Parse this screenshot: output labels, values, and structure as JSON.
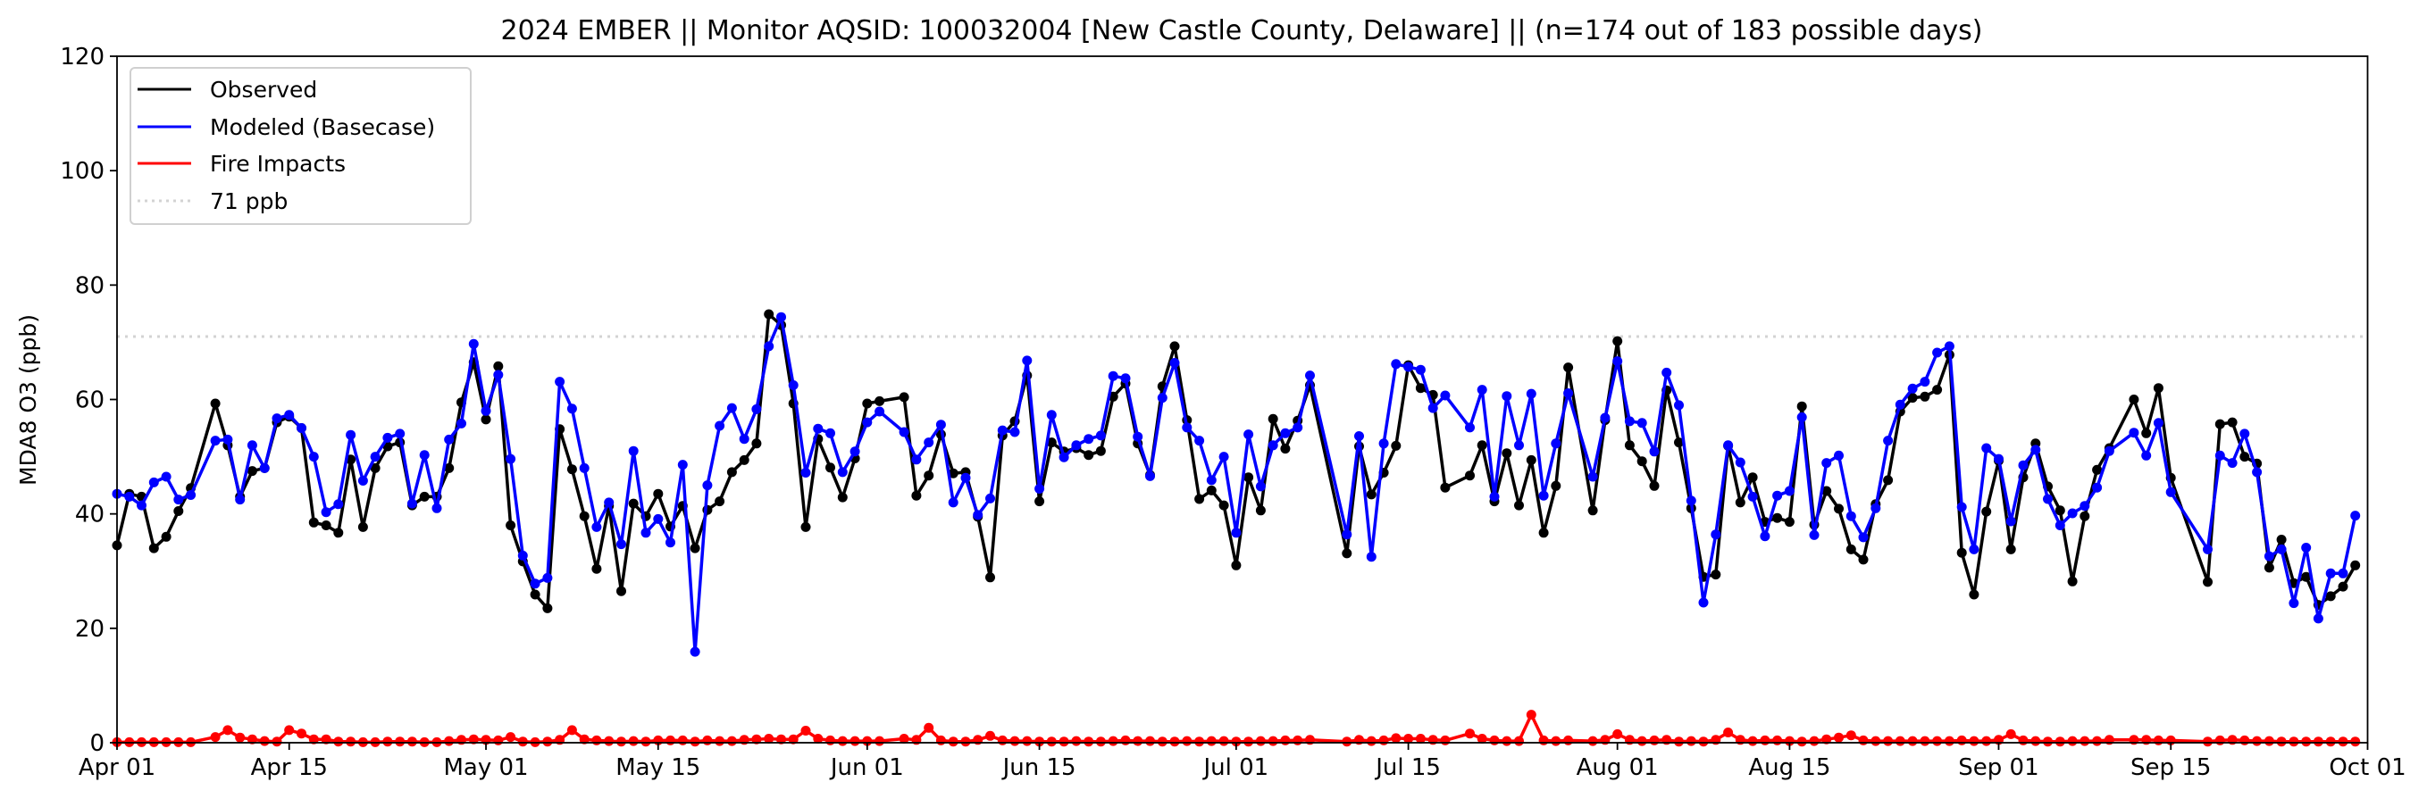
{
  "chart_data": {
    "type": "line",
    "title": "2024 EMBER || Monitor AQSID: 100032004 [New Castle County, Delaware] || (n=174 out of 183 possible days)",
    "xlabel": "",
    "ylabel": "MDA8 O3 (ppb)",
    "ylim": [
      0,
      120
    ],
    "yticks": [
      "0",
      "20",
      "40",
      "60",
      "80",
      "100",
      "120"
    ],
    "x_start": "2024-04-01",
    "x_days": 183,
    "xticks": [
      {
        "label": "Apr 01",
        "day": 0
      },
      {
        "label": "Apr 15",
        "day": 14
      },
      {
        "label": "May 01",
        "day": 30
      },
      {
        "label": "May 15",
        "day": 44
      },
      {
        "label": "Jun 01",
        "day": 61
      },
      {
        "label": "Jun 15",
        "day": 75
      },
      {
        "label": "Jul 01",
        "day": 91
      },
      {
        "label": "Jul 15",
        "day": 105
      },
      {
        "label": "Aug 01",
        "day": 122
      },
      {
        "label": "Aug 15",
        "day": 136
      },
      {
        "label": "Sep 01",
        "day": 153
      },
      {
        "label": "Sep 15",
        "day": 167
      },
      {
        "label": "Oct 01",
        "day": 183
      }
    ],
    "grid": false,
    "legend_position": "top-left",
    "reference_line": {
      "label": "71 ppb",
      "value": 71,
      "color": "#d3d3d3"
    },
    "series": [
      {
        "name": "Observed",
        "color": "#000000",
        "values": [
          34.5,
          43.5,
          43,
          34,
          36,
          40.5,
          44.5,
          null,
          59.3,
          52,
          43,
          47.5,
          48,
          56,
          57,
          55,
          38.5,
          38,
          36.7,
          49.5,
          37.7,
          48,
          51.8,
          52.5,
          41.5,
          43,
          43,
          48,
          59.5,
          66.5,
          56.5,
          65.8,
          38,
          31.7,
          25.9,
          23.5,
          54.8,
          47.8,
          39.6,
          30.4,
          41.4,
          26.5,
          41.8,
          39.6,
          43.5,
          37.8,
          41.4,
          34,
          40.7,
          42.2,
          47.3,
          49.4,
          52.3,
          74.9,
          73,
          59.3,
          37.7,
          53.1,
          48.1,
          42.9,
          49.7,
          59.3,
          59.7,
          null,
          60.4,
          43.2,
          46.7,
          53.9,
          47.1,
          47.3,
          39.5,
          28.9,
          53.7,
          56.2,
          64.2,
          42.2,
          52.5,
          50.9,
          51.5,
          50.3,
          51,
          60.5,
          62.8,
          52.3,
          46.8,
          62.3,
          69.3,
          56.4,
          42.6,
          44.1,
          41.5,
          31,
          46.4,
          40.6,
          56.6,
          51.4,
          56.3,
          62.5,
          null,
          null,
          33.1,
          51.8,
          43.4,
          47.2,
          51.9,
          66,
          62,
          60.8,
          44.6,
          null,
          46.7,
          52,
          42.2,
          50.6,
          41.5,
          49.4,
          36.7,
          44.9,
          65.6,
          null,
          40.6,
          56.4,
          70.2,
          52,
          49.2,
          44.9,
          61.6,
          52.5,
          41,
          29,
          29.4,
          51.9,
          42,
          46.4,
          38.6,
          39.3,
          38.6,
          58.8,
          38.1,
          44,
          40.9,
          33.8,
          32,
          41.7,
          45.9,
          57.9,
          60.3,
          60.5,
          61.7,
          67.8,
          33.2,
          25.9,
          40.4,
          49.3,
          33.8,
          46.4,
          52.3,
          44.8,
          40.6,
          28.2,
          39.6,
          47.7,
          51.5,
          null,
          60,
          54.1,
          62,
          46.3,
          null,
          null,
          28.1,
          55.7,
          56,
          50,
          48.8,
          30.6,
          35.5,
          27.9,
          29,
          24.1,
          25.6,
          27.3,
          31
        ]
      },
      {
        "name": "Modeled (Basecase)",
        "color": "#0000ff",
        "values": [
          43.5,
          43,
          41.5,
          45.5,
          46.5,
          42.5,
          43.3,
          null,
          52.8,
          53,
          42.5,
          52,
          48,
          56.7,
          57.3,
          55,
          50,
          40.3,
          41.7,
          53.8,
          45.8,
          50,
          53.3,
          54,
          41.8,
          50.3,
          41,
          53,
          55.8,
          69.7,
          58,
          64.3,
          49.6,
          32.7,
          27.8,
          28.8,
          63.1,
          58.4,
          48,
          37.7,
          42,
          34.7,
          51,
          36.7,
          39.1,
          35,
          48.6,
          15.9,
          45,
          55.4,
          58.5,
          53.1,
          58.3,
          69.3,
          74.4,
          62.5,
          47.2,
          54.9,
          54.1,
          47.3,
          50.9,
          56,
          57.9,
          null,
          54.3,
          49.5,
          52.5,
          55.6,
          42,
          46.3,
          39.8,
          42.7,
          54.6,
          54.3,
          66.8,
          44.4,
          57.3,
          49.9,
          52,
          53.1,
          53.7,
          64.1,
          63.7,
          53.5,
          46.6,
          60.3,
          66.4,
          55.1,
          52.8,
          45.9,
          50,
          36.7,
          53.9,
          44.8,
          52,
          54.1,
          55.1,
          64.2,
          null,
          null,
          36.4,
          53.6,
          32.5,
          52.3,
          66.2,
          65.7,
          65.2,
          58.5,
          60.7,
          null,
          55.1,
          61.7,
          43,
          60.6,
          52,
          61,
          43.2,
          52.3,
          61.1,
          null,
          46.5,
          56.8,
          66.7,
          56.2,
          55.9,
          50.9,
          64.7,
          59,
          42.3,
          24.5,
          36.4,
          52,
          49,
          43,
          36.1,
          43.2,
          44,
          56.9,
          36.3,
          48.9,
          50.2,
          39.6,
          35.9,
          41,
          52.8,
          59.1,
          61.9,
          63.1,
          68.2,
          69.3,
          41.2,
          33.8,
          51.5,
          49.6,
          38.7,
          48.5,
          51.2,
          42.6,
          38,
          40.1,
          41.4,
          44.6,
          51,
          null,
          54.2,
          50.2,
          55.9,
          43.8,
          null,
          null,
          33.8,
          50.2,
          48.9,
          54,
          47.3,
          32.6,
          33.8,
          24.4,
          34.1,
          21.7,
          29.6,
          29.6,
          39.7
        ]
      },
      {
        "name": "Fire Impacts",
        "color": "#ff0000",
        "values": [
          0.1,
          0.1,
          0.1,
          0.1,
          0.1,
          0.1,
          0.1,
          null,
          1.0,
          2.2,
          0.9,
          0.6,
          0.3,
          0.2,
          2.2,
          1.6,
          0.6,
          0.6,
          0.2,
          0.2,
          0.1,
          0.1,
          0.2,
          0.2,
          0.2,
          0.1,
          0.1,
          0.3,
          0.5,
          0.6,
          0.5,
          0.4,
          1.0,
          0.2,
          0.1,
          0.2,
          0.5,
          2.2,
          0.6,
          0.4,
          0.3,
          0.2,
          0.3,
          0.2,
          0.4,
          0.4,
          0.4,
          0.2,
          0.4,
          0.3,
          0.3,
          0.5,
          0.6,
          0.7,
          0.6,
          0.6,
          2.1,
          0.7,
          0.4,
          0.3,
          0.3,
          0.3,
          0.3,
          null,
          0.7,
          0.5,
          2.6,
          0.4,
          0.2,
          0.2,
          0.5,
          1.2,
          0.4,
          0.3,
          0.3,
          0.2,
          0.2,
          0.2,
          0.3,
          0.2,
          0.2,
          0.3,
          0.4,
          0.3,
          0.3,
          0.2,
          0.2,
          0.3,
          0.2,
          0.3,
          0.3,
          0.2,
          0.2,
          0.3,
          0.3,
          0.4,
          0.4,
          0.5,
          null,
          null,
          0.2,
          0.5,
          0.3,
          0.4,
          0.8,
          0.7,
          0.7,
          0.5,
          0.4,
          null,
          1.6,
          0.7,
          0.4,
          0.3,
          0.3,
          4.9,
          0.4,
          0.3,
          0.4,
          null,
          0.3,
          0.5,
          1.5,
          0.5,
          0.3,
          0.4,
          0.5,
          0.2,
          0.3,
          0.2,
          0.5,
          1.8,
          0.5,
          0.3,
          0.4,
          0.4,
          0.3,
          0.2,
          0.3,
          0.6,
          0.9,
          1.3,
          0.4,
          0.3,
          0.3,
          0.3,
          0.3,
          0.3,
          0.3,
          0.3,
          0.4,
          0.3,
          0.3,
          0.5,
          1.5,
          0.4,
          0.3,
          0.2,
          0.2,
          0.3,
          0.3,
          0.3,
          0.5,
          null,
          0.5,
          0.5,
          0.4,
          0.4,
          null,
          null,
          0.2,
          0.4,
          0.5,
          0.4,
          0.3,
          0.3,
          0.2,
          0.2,
          0.2,
          0.2,
          0.2,
          0.2,
          0.2
        ]
      }
    ]
  }
}
